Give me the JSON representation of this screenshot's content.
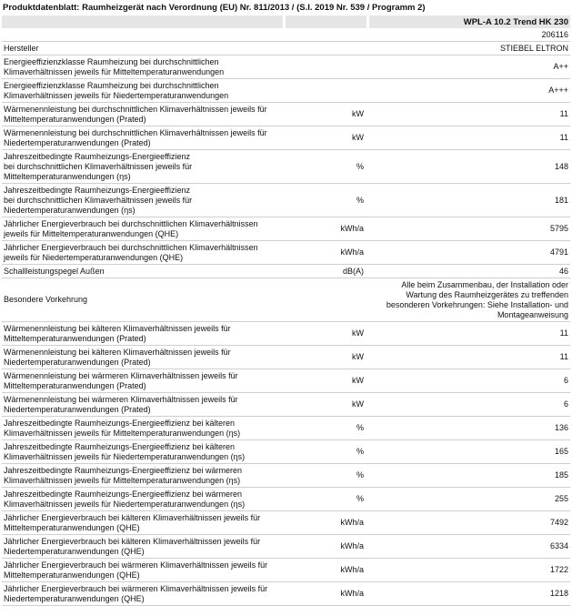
{
  "header": {
    "title": "Produktdatenblatt: Raumheizgerät nach Verordnung (EU) Nr. 811/2013 / (S.I. 2019 Nr. 539 / Programm 2)"
  },
  "product": {
    "name": "WPL-A 10.2 Trend HK 230",
    "code": "206116"
  },
  "table": {
    "rows": [
      {
        "label": "Hersteller",
        "value": "STIEBEL ELTRON"
      },
      {
        "label": "Energieeffizienzklasse Raumheizung bei durchschnittlichen\nKlimaverhältnissen jeweils für Mitteltemperaturanwendungen",
        "value": "A++"
      },
      {
        "label": "Energieeffizienzklasse Raumheizung bei durchschnittlichen\nKlimaverhältnissen jeweils für Niedertemperaturanwendungen",
        "value": "A+++"
      },
      {
        "label": "Wärmenennleistung bei durchschnittlichen Klimaverhältnissen jeweils für\nMitteltemperaturanwendungen (Prated)",
        "unit": "kW",
        "value": "11"
      },
      {
        "label": "Wärmenennleistung bei durchschnittlichen Klimaverhältnissen jeweils für\nNiedertemperaturanwendungen (Prated)",
        "unit": "kW",
        "value": "11"
      },
      {
        "label": "Jahreszeitbedingte Raumheizungs-Energieeffizienz\nbei durchschnittlichen Klimaverhältnissen jeweils für\nMitteltemperaturanwendungen (ηs)",
        "unit": "%",
        "value": "148"
      },
      {
        "label": "Jahreszeitbedingte Raumheizungs-Energieeffizienz\nbei durchschnittlichen Klimaverhältnissen jeweils für\nNiedertemperaturanwendungen (ηs)",
        "unit": "%",
        "value": "181"
      },
      {
        "label": "Jährlicher Energieverbrauch bei durchschnittlichen Klimaverhältnissen\njeweils für Mitteltemperaturanwendungen (QHE)",
        "unit": "kWh/a",
        "value": "5795"
      },
      {
        "label": "Jährlicher Energieverbrauch bei durchschnittlichen Klimaverhältnissen\njeweils für Niedertemperaturanwendungen (QHE)",
        "unit": "kWh/a",
        "value": "4791"
      },
      {
        "label": "Schallleistungspegel Außen",
        "unit": "dB(A)",
        "value": "46"
      },
      {
        "label": "Besondere Vorkehrung",
        "value": "Alle beim Zusammenbau, der Installation oder\nWartung des Raumheizgerätes zu treffenden\nbesonderen Vorkehrungen: Siehe Installation- und\nMontageanweisung"
      },
      {
        "label": "Wärmenennleistung bei kälteren Klimaverhältnissen jeweils für\nMitteltemperaturanwendungen (Prated)",
        "unit": "kW",
        "value": "11"
      },
      {
        "label": "Wärmenennleistung bei kälteren Klimaverhältnissen jeweils für\nNiedertemperaturanwendungen (Prated)",
        "unit": "kW",
        "value": "11"
      },
      {
        "label": "Wärmenennleistung bei wärmeren Klimaverhältnissen jeweils für\nMitteltemperaturanwendungen (Prated)",
        "unit": "kW",
        "value": "6"
      },
      {
        "label": "Wärmenennleistung bei wärmeren Klimaverhältnissen jeweils für\nNiedertemperaturanwendungen (Prated)",
        "unit": "kW",
        "value": "6"
      },
      {
        "label": "Jahreszeitbedingte Raumheizungs-Energieeffizienz bei kälteren\nKlimaverhältnissen jeweils für Mitteltemperaturanwendungen (ηs)",
        "unit": "%",
        "value": "136"
      },
      {
        "label": "Jahreszeitbedingte Raumheizungs-Energieeffizienz bei kälteren\nKlimaverhältnissen jeweils für Niedertemperaturanwendungen (ηs)",
        "unit": "%",
        "value": "165"
      },
      {
        "label": "Jahreszeitbedingte Raumheizungs-Energieeffizienz bei wärmeren\nKlimaverhältnissen jeweils für Mitteltemperaturanwendungen (ηs)",
        "unit": "%",
        "value": "185"
      },
      {
        "label": "Jahreszeitbedingte Raumheizungs-Energieeffizienz bei wärmeren\nKlimaverhältnissen jeweils für Niedertemperaturanwendungen (ηs)",
        "unit": "%",
        "value": "255"
      },
      {
        "label": "Jährlicher Energieverbrauch bei kälteren Klimaverhältnissen jeweils für\nMitteltemperaturanwendungen (QHE)",
        "unit": "kWh/a",
        "value": "7492"
      },
      {
        "label": "Jährlicher Energieverbrauch bei kälteren Klimaverhältnissen jeweils für\nNiedertemperaturanwendungen (QHE)",
        "unit": "kWh/a",
        "value": "6334"
      },
      {
        "label": "Jährlicher Energieverbrauch bei wärmeren Klimaverhältnissen jeweils für\nMitteltemperaturanwendungen (QHE)",
        "unit": "kWh/a",
        "value": "1722"
      },
      {
        "label": "Jährlicher Energieverbrauch bei wärmeren Klimaverhältnissen jeweils für\nNiedertemperaturanwendungen (QHE)",
        "unit": "kWh/a",
        "value": "1218"
      }
    ]
  }
}
